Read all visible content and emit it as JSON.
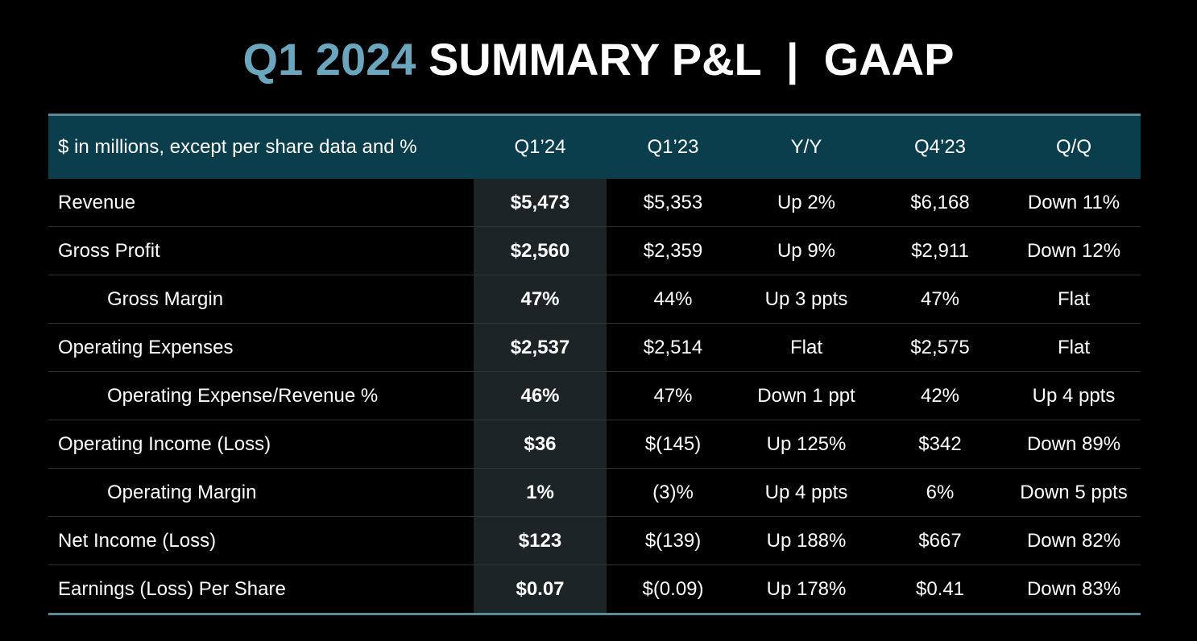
{
  "title": {
    "accent": "Q1 2024",
    "main": "SUMMARY P&L  |  GAAP"
  },
  "colors": {
    "background": "#000000",
    "accent": "#6aa6bd",
    "header_bg": "#0b3e4c",
    "highlight_col_bg": "#1c2426",
    "rule": "#5c8a96"
  },
  "table": {
    "headers": [
      "$ in millions, except per share data and %",
      "Q1’24",
      "Q1’23",
      "Y/Y",
      "Q4’23",
      "Q/Q"
    ],
    "rows": [
      {
        "label": "Revenue",
        "indent": false,
        "cells": [
          "$5,473",
          "$5,353",
          "Up 2%",
          "$6,168",
          "Down 11%"
        ]
      },
      {
        "label": "Gross Profit",
        "indent": false,
        "cells": [
          "$2,560",
          "$2,359",
          "Up 9%",
          "$2,911",
          "Down 12%"
        ]
      },
      {
        "label": "Gross Margin",
        "indent": true,
        "cells": [
          "47%",
          "44%",
          "Up 3 ppts",
          "47%",
          "Flat"
        ]
      },
      {
        "label": "Operating Expenses",
        "indent": false,
        "cells": [
          "$2,537",
          "$2,514",
          "Flat",
          "$2,575",
          "Flat"
        ]
      },
      {
        "label": "Operating Expense/Revenue %",
        "indent": true,
        "cells": [
          "46%",
          "47%",
          "Down 1 ppt",
          "42%",
          "Up 4 ppts"
        ]
      },
      {
        "label": "Operating Income (Loss)",
        "indent": false,
        "cells": [
          "$36",
          "$(145)",
          "Up 125%",
          "$342",
          "Down 89%"
        ]
      },
      {
        "label": "Operating Margin",
        "indent": true,
        "cells": [
          "1%",
          "(3)%",
          "Up 4 ppts",
          "6%",
          "Down 5 ppts"
        ]
      },
      {
        "label": "Net Income (Loss)",
        "indent": false,
        "cells": [
          "$123",
          "$(139)",
          "Up 188%",
          "$667",
          "Down 82%"
        ]
      },
      {
        "label": "Earnings (Loss) Per Share",
        "indent": false,
        "cells": [
          "$0.07",
          "$(0.09)",
          "Up 178%",
          "$0.41",
          "Down 83%"
        ]
      }
    ]
  }
}
